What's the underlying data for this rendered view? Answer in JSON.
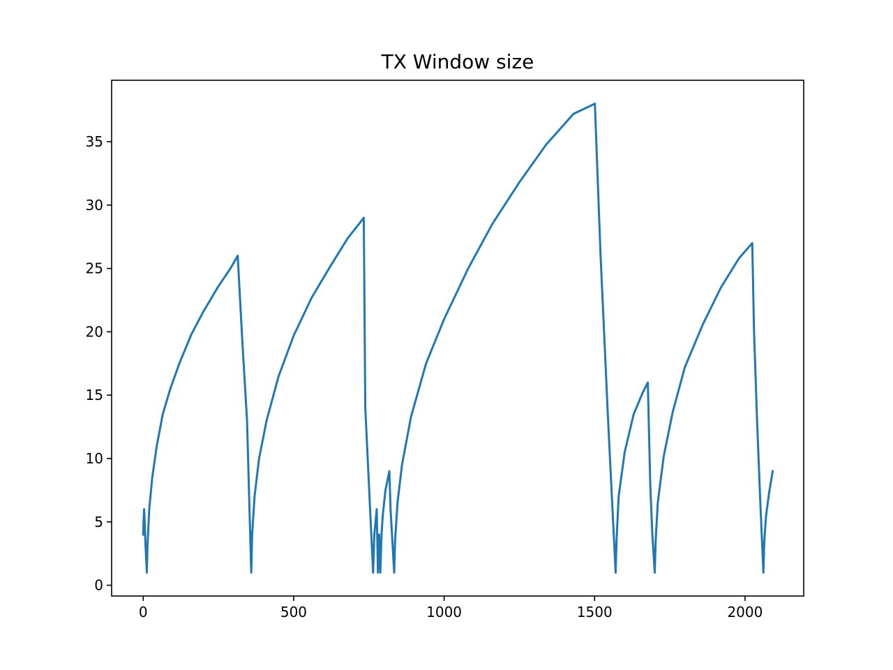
{
  "chart_data": {
    "type": "line",
    "title": "TX Window size",
    "xlabel": "",
    "ylabel": "",
    "xlim": [
      -105,
      2195
    ],
    "ylim": [
      -0.85,
      39.85
    ],
    "x_ticks": [
      0,
      500,
      1000,
      1500,
      2000
    ],
    "x_tick_labels": [
      "0",
      "500",
      "1000",
      "1500",
      "2000"
    ],
    "y_ticks": [
      0,
      5,
      10,
      15,
      20,
      25,
      30,
      35
    ],
    "y_tick_labels": [
      "0",
      "5",
      "10",
      "15",
      "20",
      "25",
      "30",
      "35"
    ],
    "grid": false,
    "line_color": "#1f77b4",
    "series": [
      {
        "x": [
          0,
          1,
          3,
          5,
          7,
          12,
          14,
          20,
          30,
          45,
          65,
          90,
          120,
          160,
          200,
          250,
          290,
          314,
          330,
          345,
          359,
          362,
          370,
          385,
          410,
          450,
          500,
          560,
          620,
          680,
          720,
          733,
          738,
          750,
          764,
          768,
          776,
          780,
          784,
          788,
          792,
          796,
          805,
          818,
          822,
          834,
          837,
          845,
          860,
          890,
          940,
          1000,
          1080,
          1160,
          1250,
          1340,
          1430,
          1501,
          1520,
          1545,
          1570,
          1573,
          1580,
          1600,
          1630,
          1660,
          1677,
          1685,
          1692,
          1700,
          1703,
          1710,
          1730,
          1760,
          1800,
          1860,
          1920,
          1980,
          2024,
          2030,
          2040,
          2050,
          2061,
          2064,
          2070,
          2080,
          2092
        ],
        "y": [
          4,
          5,
          6,
          5,
          3.5,
          1,
          3,
          6,
          8.5,
          11,
          13.5,
          15.5,
          17.5,
          19.8,
          21.6,
          23.6,
          25,
          26,
          19,
          13,
          1,
          4,
          7,
          10,
          13,
          16.5,
          19.7,
          22.7,
          25.1,
          27.4,
          28.6,
          29,
          14,
          8,
          1,
          4,
          6,
          1,
          4,
          1,
          4,
          5.5,
          7.5,
          9,
          6,
          1,
          3.5,
          6.5,
          9.5,
          13.3,
          17.5,
          21,
          25,
          28.5,
          31.8,
          34.8,
          37.2,
          38,
          26,
          13,
          1,
          3.5,
          7,
          10.5,
          13.5,
          15.2,
          16,
          8,
          4,
          1,
          3.5,
          6.5,
          10.2,
          13.7,
          17.2,
          20.6,
          23.5,
          25.8,
          27,
          20,
          13,
          7,
          1,
          3.5,
          5.5,
          7.3,
          9
        ]
      }
    ]
  }
}
